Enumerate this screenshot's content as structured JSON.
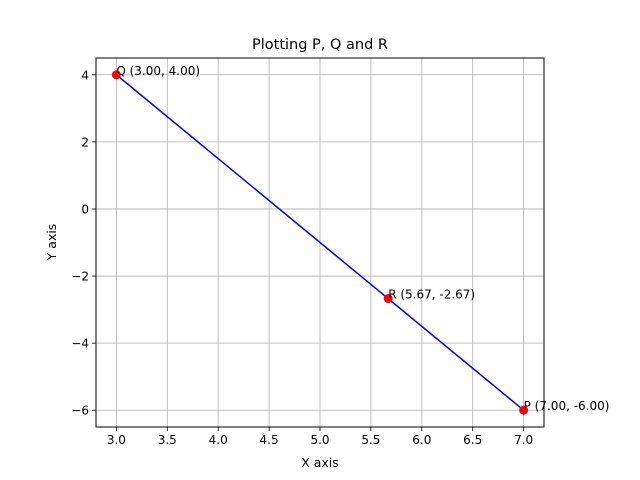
{
  "chart_data": {
    "type": "line",
    "title": "Plotting P, Q and R",
    "xlabel": "X axis",
    "ylabel": "Y axis",
    "xlim": [
      2.8,
      7.2
    ],
    "ylim": [
      -6.5,
      4.5
    ],
    "xticks": [
      3.0,
      3.5,
      4.0,
      4.5,
      5.0,
      5.5,
      6.0,
      6.5,
      7.0
    ],
    "xtick_labels": [
      "3.0",
      "3.5",
      "4.0",
      "4.5",
      "5.0",
      "5.5",
      "6.0",
      "6.5",
      "7.0"
    ],
    "yticks": [
      -6,
      -4,
      -2,
      0,
      2,
      4
    ],
    "ytick_labels": [
      "−6",
      "−4",
      "−2",
      "0",
      "2",
      "4"
    ],
    "grid": true,
    "line": {
      "x": [
        3.0,
        7.0
      ],
      "y": [
        4.0,
        -6.0
      ],
      "color": "#0000ff"
    },
    "points": [
      {
        "label": "Q (3.00, 4.00)",
        "x": 3.0,
        "y": 4.0
      },
      {
        "label": "R (5.67, -2.67)",
        "x": 5.67,
        "y": -2.67
      },
      {
        "label": "P (7.00, -6.00)",
        "x": 7.0,
        "y": -6.0
      }
    ],
    "point_color": "#ff0000"
  }
}
